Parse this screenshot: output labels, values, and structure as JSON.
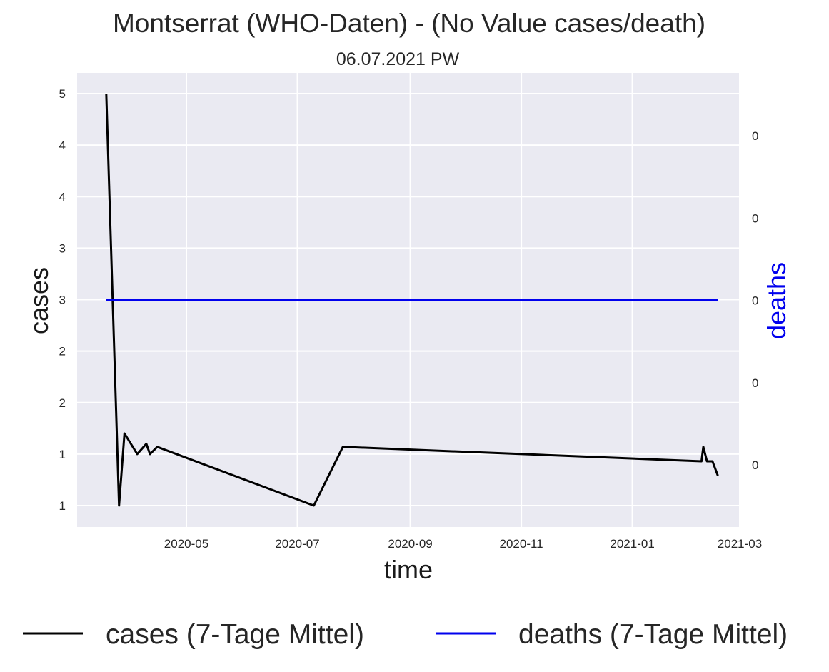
{
  "chart_data": {
    "type": "line",
    "title": "Montserrat (WHO-Daten) - (No Value cases/death)",
    "subtitle": "06.07.2021 PW",
    "xlabel": "time",
    "ylabel": "cases",
    "y2label": "deaths",
    "x_ticks": [
      "2020-05",
      "2020-07",
      "2020-09",
      "2020-11",
      "2021-01",
      "2021-03"
    ],
    "y_ticks": [
      "1",
      "1",
      "2",
      "2",
      "3",
      "3",
      "4",
      "4",
      "5"
    ],
    "y2_ticks": [
      "0",
      "0",
      "0",
      "0",
      "0"
    ],
    "grid": true,
    "legend_position": "bottom",
    "colors": {
      "cases": "#000000",
      "deaths": "#0000ee",
      "plot_bg": "#eaeaf2",
      "grid": "#ffffff"
    },
    "series": [
      {
        "name": "cases (7-Tage Mittel)",
        "axis": "left",
        "points": [
          [
            "2020-03-18",
            5.0
          ],
          [
            "2020-03-25",
            1.0
          ],
          [
            "2020-03-28",
            1.7
          ],
          [
            "2020-04-04",
            1.5
          ],
          [
            "2020-04-09",
            1.6
          ],
          [
            "2020-04-11",
            1.5
          ],
          [
            "2020-04-15",
            1.57
          ],
          [
            "2020-07-10",
            1.0
          ],
          [
            "2020-07-26",
            1.57
          ],
          [
            "2021-02-08",
            1.43
          ],
          [
            "2021-02-09",
            1.57
          ],
          [
            "2021-02-11",
            1.43
          ],
          [
            "2021-02-14",
            1.43
          ],
          [
            "2021-02-17",
            1.29
          ]
        ]
      },
      {
        "name": "deaths (7-Tage Mittel)",
        "axis": "right",
        "points": [
          [
            "2020-03-18",
            0.0
          ],
          [
            "2021-02-17",
            0.0
          ]
        ]
      }
    ]
  }
}
